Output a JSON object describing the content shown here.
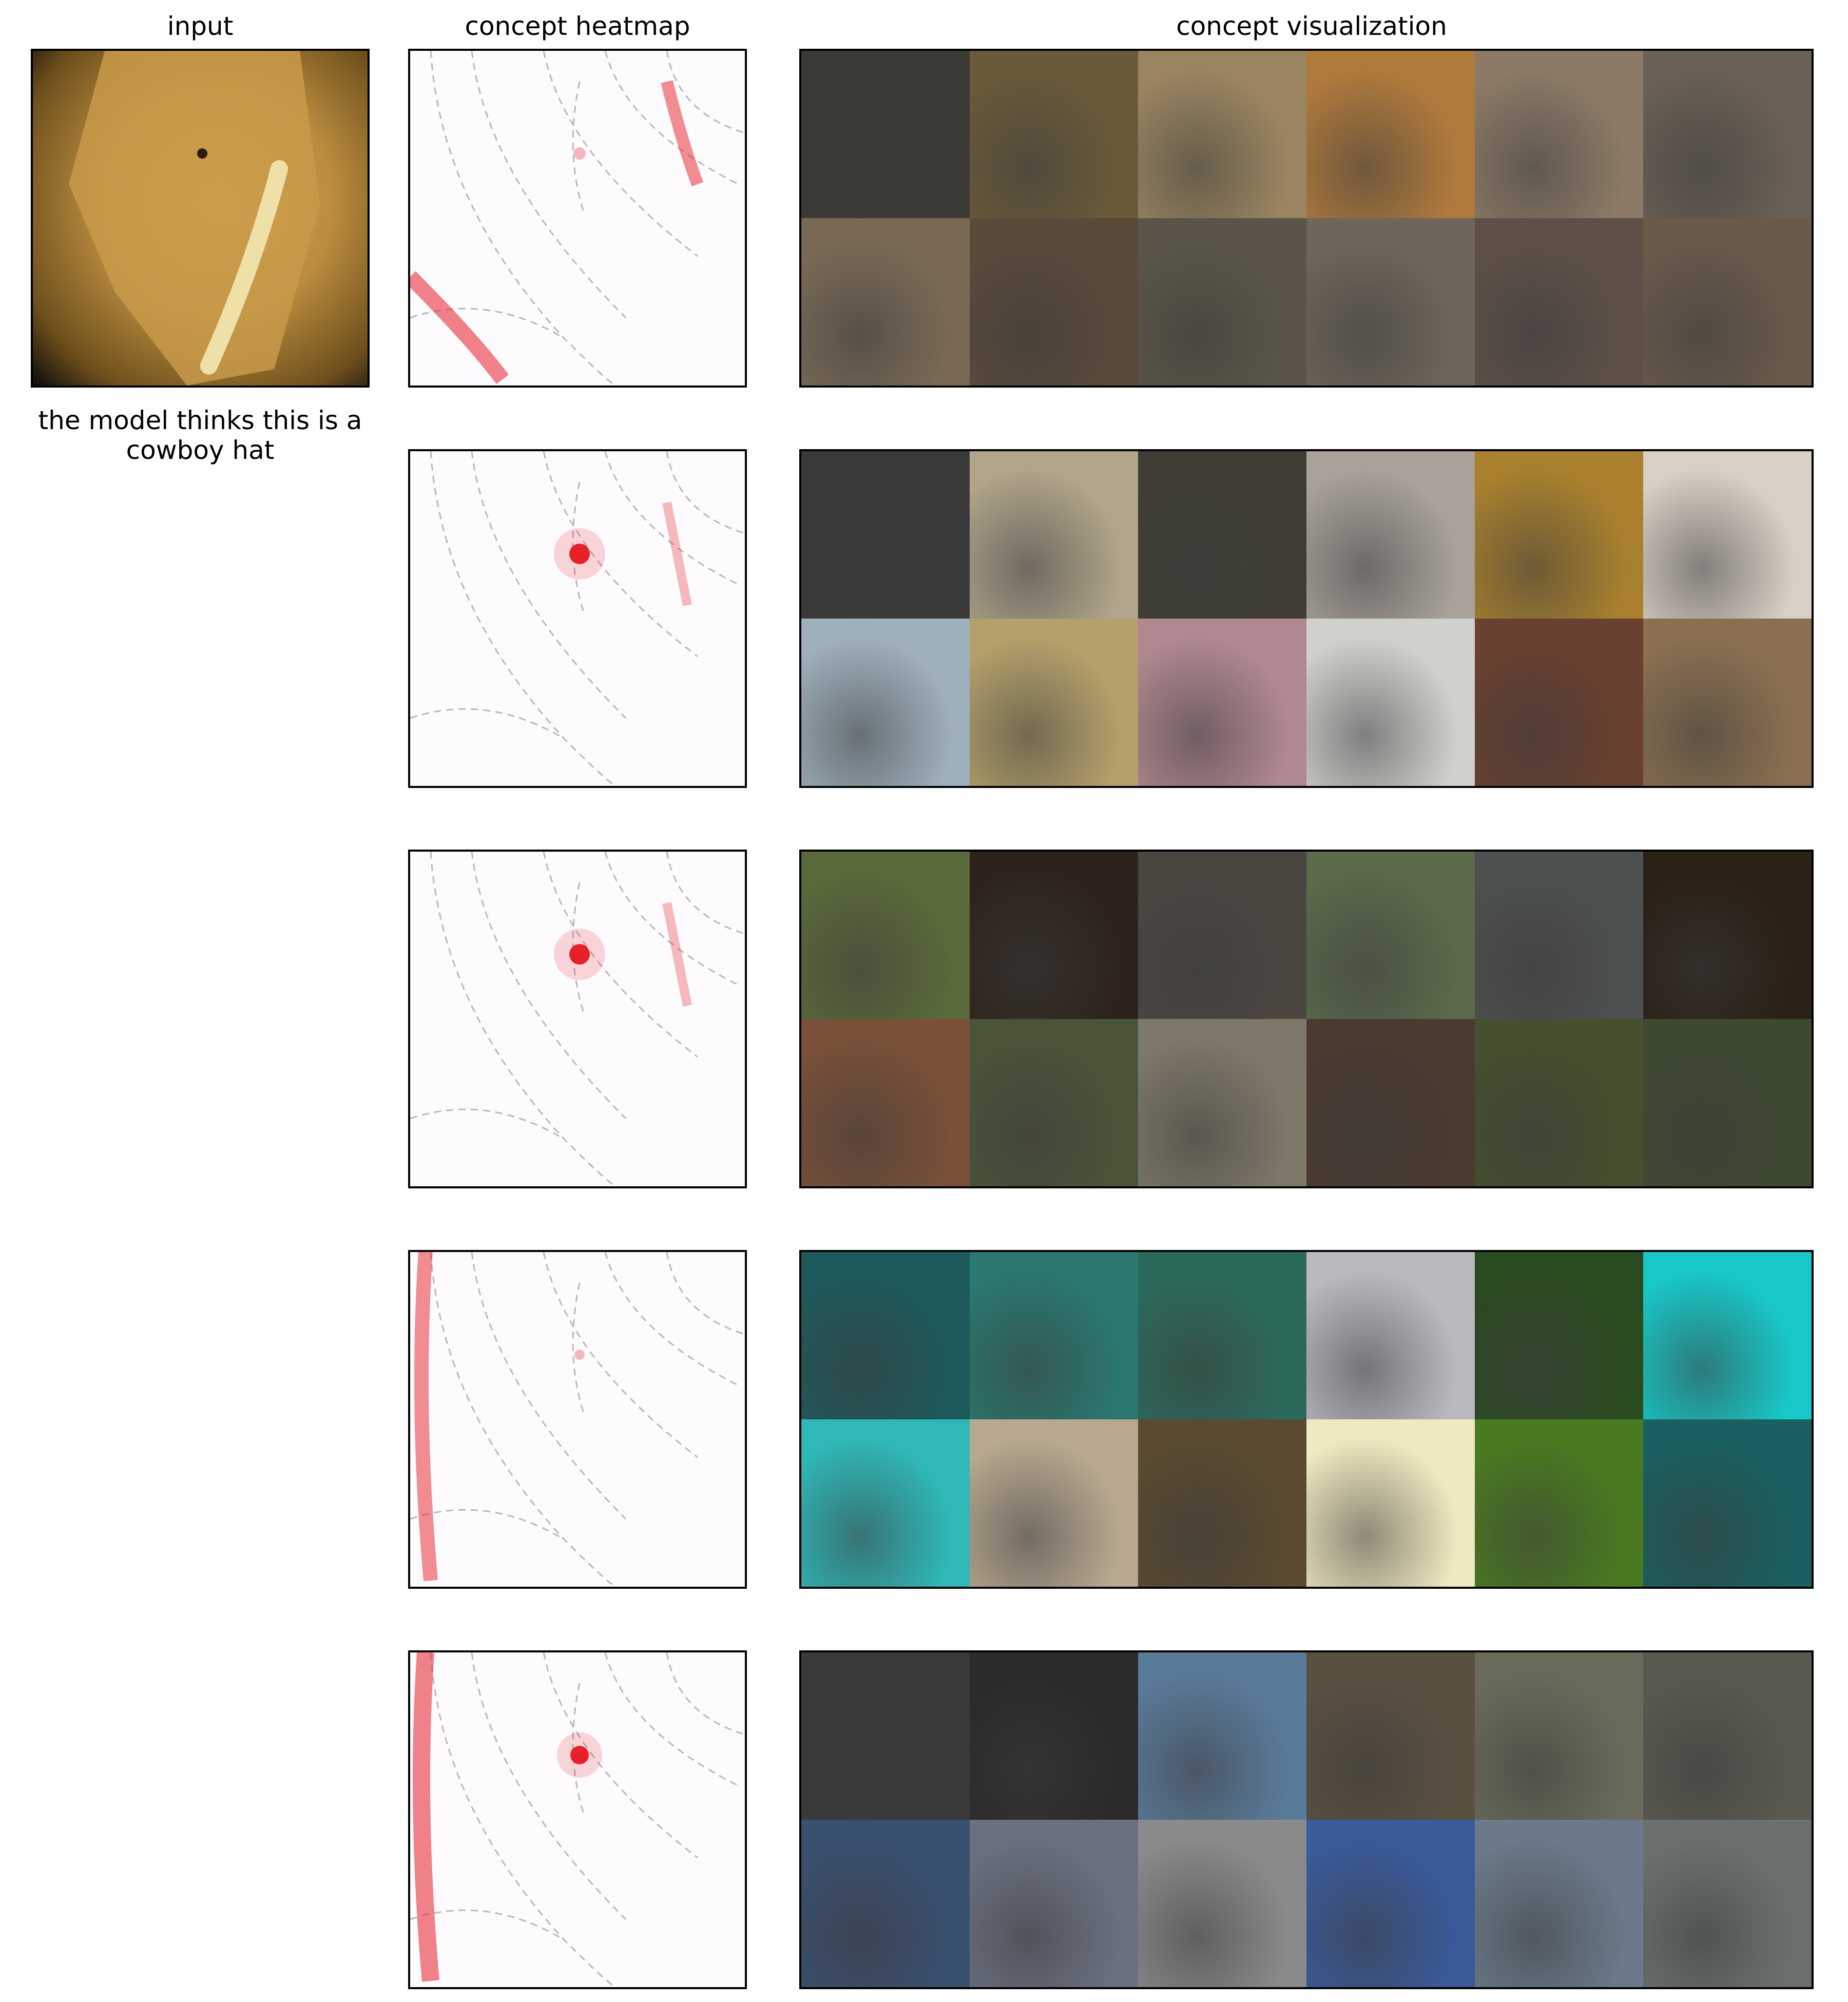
{
  "headers": {
    "input": "input",
    "heatmap": "concept heatmap",
    "visualization": "concept visualization"
  },
  "caption": "the model thinks this is a cowboy hat",
  "concepts": [
    {
      "heatmap_highlight": "edges-and-tip",
      "tiles": [
        "#3b3a35",
        "#6a5a3a",
        "#9a8560",
        "#b07a3c",
        "#8c7a66",
        "#6a6055",
        "#7a6a55",
        "#5a4a3a",
        "#5a5548",
        "#6e665a",
        "#5e5048",
        "#6a5a4a"
      ]
    },
    {
      "heatmap_highlight": "center-dot",
      "tiles": [
        "#3a3a3a",
        "#b0a48a",
        "#3f3d33",
        "#a8a29a",
        "#a8802e",
        "#d8cfc5",
        "#9eb0bc",
        "#b4a06a",
        "#b08890",
        "#d0d0cc",
        "#6a4030",
        "#8a7050"
      ]
    },
    {
      "heatmap_highlight": "center-dot",
      "tiles": [
        "#5a6a3a",
        "#2d231c",
        "#4b4640",
        "#5a6a4a",
        "#4d5050",
        "#2a2016",
        "#7a5038",
        "#4a5438",
        "#7e7868",
        "#4a3a30",
        "#44502e",
        "#3e4a30"
      ]
    },
    {
      "heatmap_highlight": "left-edge",
      "tiles": [
        "#1e5a5c",
        "#2a7870",
        "#2b6a5a",
        "#bcb8c0",
        "#2a4a20",
        "#18c8c8",
        "#30b8b8",
        "#b8a890",
        "#5a4a30",
        "#f0e8c0",
        "#4a7a20",
        "#1a6060"
      ]
    },
    {
      "heatmap_highlight": "left-edge-and-dot",
      "tiles": [
        "#3a3a3a",
        "#2a2a2a",
        "#5a7a9a",
        "#5a5040",
        "#6a6a5a",
        "#5a5a50",
        "#3a5070",
        "#6a7080",
        "#8a8a8a",
        "#3a5a9a",
        "#6a7a8a",
        "#6a7070"
      ]
    }
  ]
}
